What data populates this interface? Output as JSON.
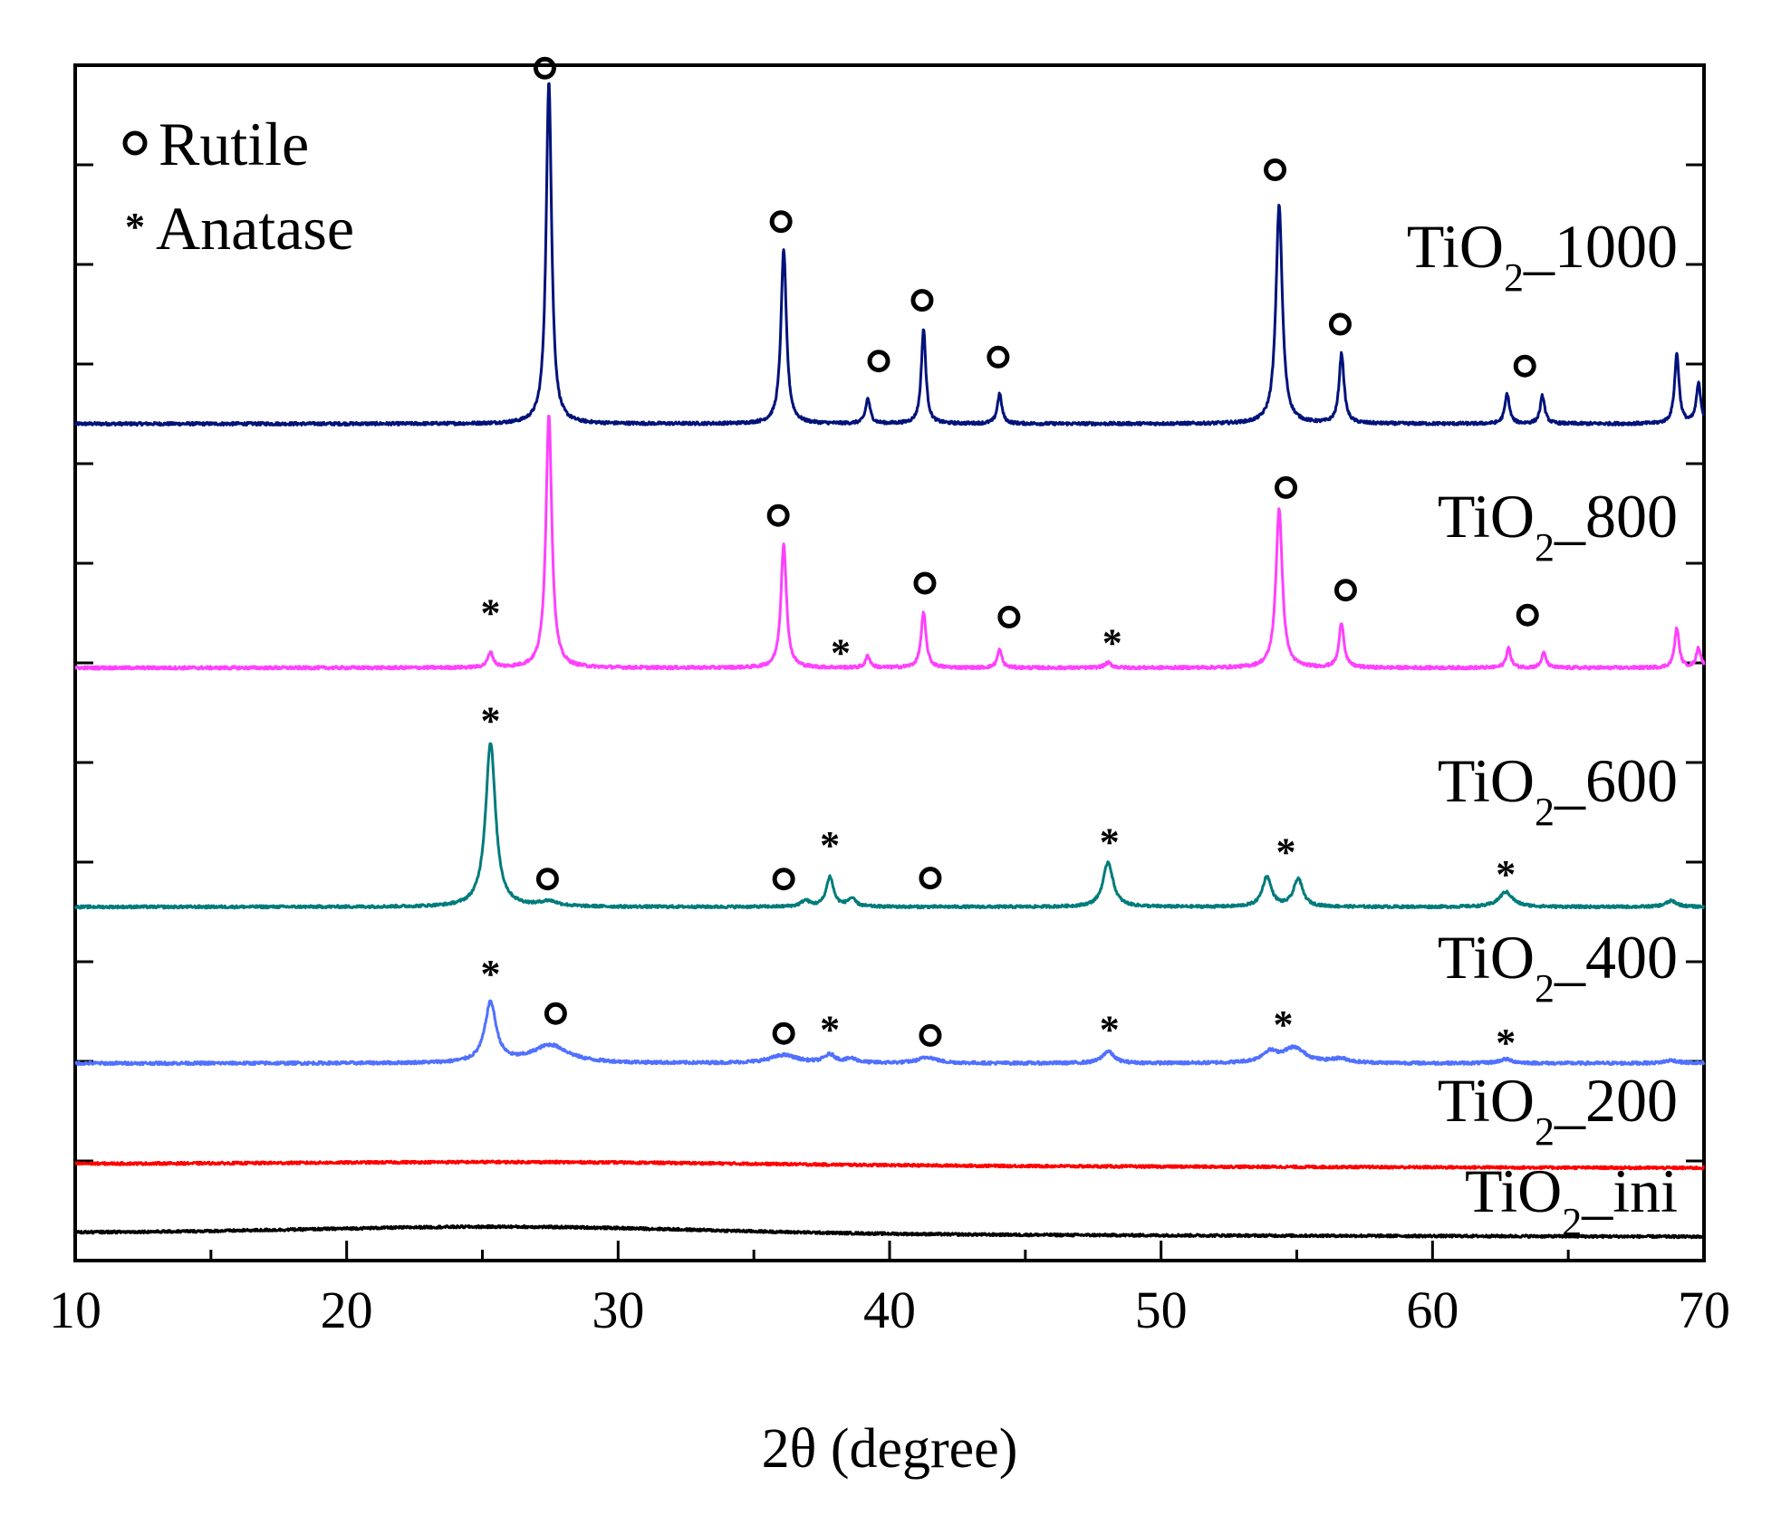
{
  "chart_data": {
    "type": "line",
    "title": "",
    "xlabel": "2θ (degree)",
    "ylabel": "",
    "xlim": [
      10,
      70
    ],
    "ylim": [
      0,
      12
    ],
    "x_ticks": [
      10,
      20,
      30,
      40,
      50,
      60,
      70
    ],
    "y_ticklabels_shown": false,
    "grid": false,
    "legend": {
      "position": "top-left",
      "entries": [
        {
          "symbol": "circle",
          "label": "Rutile"
        },
        {
          "symbol": "star",
          "label": "Anatase"
        }
      ]
    },
    "series": [
      {
        "name": "TiO2_1000",
        "label_main": "TiO",
        "label_sub": "2",
        "label_suffix": "_1000",
        "color": "#00127a",
        "baseline": 8.4,
        "noise": 0.015,
        "peaks": [
          {
            "x": 27.45,
            "h": 3.45,
            "w": 0.12
          },
          {
            "x": 36.1,
            "h": 1.75,
            "w": 0.12
          },
          {
            "x": 39.2,
            "h": 0.25,
            "w": 0.1
          },
          {
            "x": 41.25,
            "h": 0.95,
            "w": 0.1
          },
          {
            "x": 44.05,
            "h": 0.3,
            "w": 0.1
          },
          {
            "x": 54.35,
            "h": 2.2,
            "w": 0.14
          },
          {
            "x": 56.65,
            "h": 0.7,
            "w": 0.11
          },
          {
            "x": 62.75,
            "h": 0.3,
            "w": 0.1
          },
          {
            "x": 64.05,
            "h": 0.28,
            "w": 0.1
          },
          {
            "x": 69.0,
            "h": 0.7,
            "w": 0.1
          },
          {
            "x": 69.8,
            "h": 0.4,
            "w": 0.1
          }
        ],
        "markers": [
          {
            "x": 27.3,
            "y": 11.97,
            "symbol": "circle"
          },
          {
            "x": 36.0,
            "y": 10.43,
            "symbol": "circle"
          },
          {
            "x": 39.6,
            "y": 9.03,
            "symbol": "circle"
          },
          {
            "x": 41.2,
            "y": 9.64,
            "symbol": "circle"
          },
          {
            "x": 44.0,
            "y": 9.07,
            "symbol": "circle"
          },
          {
            "x": 54.2,
            "y": 10.95,
            "symbol": "circle"
          },
          {
            "x": 56.6,
            "y": 9.4,
            "symbol": "circle"
          },
          {
            "x": 63.4,
            "y": 8.98,
            "symbol": "circle"
          }
        ]
      },
      {
        "name": "TiO2_800",
        "label_main": "TiO",
        "label_sub": "2",
        "label_suffix": "_800",
        "color": "#ff40ff",
        "baseline": 5.95,
        "noise": 0.015,
        "peaks": [
          {
            "x": 25.3,
            "h": 0.15,
            "w": 0.12
          },
          {
            "x": 27.45,
            "h": 2.55,
            "w": 0.13
          },
          {
            "x": 36.1,
            "h": 1.25,
            "w": 0.12
          },
          {
            "x": 39.2,
            "h": 0.12,
            "w": 0.1
          },
          {
            "x": 41.25,
            "h": 0.55,
            "w": 0.11
          },
          {
            "x": 44.05,
            "h": 0.18,
            "w": 0.1
          },
          {
            "x": 48.05,
            "h": 0.05,
            "w": 0.15
          },
          {
            "x": 54.35,
            "h": 1.6,
            "w": 0.14
          },
          {
            "x": 56.65,
            "h": 0.45,
            "w": 0.11
          },
          {
            "x": 62.8,
            "h": 0.2,
            "w": 0.1
          },
          {
            "x": 64.1,
            "h": 0.15,
            "w": 0.1
          },
          {
            "x": 69.0,
            "h": 0.4,
            "w": 0.1
          },
          {
            "x": 69.8,
            "h": 0.2,
            "w": 0.1
          }
        ],
        "markers": [
          {
            "x": 25.3,
            "y": 6.53,
            "symbol": "star"
          },
          {
            "x": 35.9,
            "y": 7.48,
            "symbol": "circle"
          },
          {
            "x": 38.2,
            "y": 6.13,
            "symbol": "star"
          },
          {
            "x": 41.3,
            "y": 6.8,
            "symbol": "circle"
          },
          {
            "x": 44.4,
            "y": 6.46,
            "symbol": "circle"
          },
          {
            "x": 48.2,
            "y": 6.23,
            "symbol": "star"
          },
          {
            "x": 54.6,
            "y": 7.76,
            "symbol": "circle"
          },
          {
            "x": 56.8,
            "y": 6.73,
            "symbol": "circle"
          },
          {
            "x": 63.5,
            "y": 6.48,
            "symbol": "circle"
          }
        ]
      },
      {
        "name": "TiO2_600",
        "label_main": "TiO",
        "label_sub": "2",
        "label_suffix": "_600",
        "color": "#007b7b",
        "baseline": 3.55,
        "noise": 0.013,
        "peaks": [
          {
            "x": 25.3,
            "h": 1.65,
            "w": 0.22
          },
          {
            "x": 27.45,
            "h": 0.05,
            "w": 0.4
          },
          {
            "x": 36.9,
            "h": 0.06,
            "w": 0.2
          },
          {
            "x": 37.8,
            "h": 0.3,
            "w": 0.16
          },
          {
            "x": 38.6,
            "h": 0.08,
            "w": 0.18
          },
          {
            "x": 48.05,
            "h": 0.45,
            "w": 0.22
          },
          {
            "x": 53.9,
            "h": 0.3,
            "w": 0.2
          },
          {
            "x": 55.05,
            "h": 0.28,
            "w": 0.2
          },
          {
            "x": 62.7,
            "h": 0.15,
            "w": 0.3
          },
          {
            "x": 68.8,
            "h": 0.06,
            "w": 0.25
          }
        ],
        "markers": [
          {
            "x": 25.3,
            "y": 5.45,
            "symbol": "star"
          },
          {
            "x": 27.4,
            "y": 3.83,
            "symbol": "circle"
          },
          {
            "x": 36.1,
            "y": 3.83,
            "symbol": "circle"
          },
          {
            "x": 37.8,
            "y": 4.2,
            "symbol": "star"
          },
          {
            "x": 41.5,
            "y": 3.84,
            "symbol": "circle"
          },
          {
            "x": 48.1,
            "y": 4.23,
            "symbol": "star"
          },
          {
            "x": 54.6,
            "y": 4.13,
            "symbol": "star"
          },
          {
            "x": 62.7,
            "y": 3.91,
            "symbol": "star"
          }
        ]
      },
      {
        "name": "TiO2_400",
        "label_main": "TiO",
        "label_sub": "2",
        "label_suffix": "_400",
        "color": "#5070ff",
        "baseline": 1.98,
        "noise": 0.015,
        "peaks": [
          {
            "x": 25.3,
            "h": 0.6,
            "w": 0.25
          },
          {
            "x": 27.5,
            "h": 0.18,
            "w": 0.8
          },
          {
            "x": 36.1,
            "h": 0.08,
            "w": 0.6
          },
          {
            "x": 37.8,
            "h": 0.08,
            "w": 0.25
          },
          {
            "x": 38.6,
            "h": 0.04,
            "w": 0.25
          },
          {
            "x": 41.4,
            "h": 0.06,
            "w": 0.4
          },
          {
            "x": 48.05,
            "h": 0.12,
            "w": 0.25
          },
          {
            "x": 54.0,
            "h": 0.1,
            "w": 0.35
          },
          {
            "x": 54.9,
            "h": 0.15,
            "w": 0.5
          },
          {
            "x": 56.6,
            "h": 0.04,
            "w": 0.4
          },
          {
            "x": 62.7,
            "h": 0.04,
            "w": 0.3
          },
          {
            "x": 68.8,
            "h": 0.03,
            "w": 0.3
          }
        ],
        "markers": [
          {
            "x": 25.3,
            "y": 2.91,
            "symbol": "star"
          },
          {
            "x": 27.7,
            "y": 2.48,
            "symbol": "circle"
          },
          {
            "x": 36.1,
            "y": 2.28,
            "symbol": "circle"
          },
          {
            "x": 37.8,
            "y": 2.35,
            "symbol": "star"
          },
          {
            "x": 41.5,
            "y": 2.26,
            "symbol": "circle"
          },
          {
            "x": 48.1,
            "y": 2.35,
            "symbol": "star"
          },
          {
            "x": 54.5,
            "y": 2.4,
            "symbol": "star"
          },
          {
            "x": 62.7,
            "y": 2.22,
            "symbol": "star"
          }
        ]
      },
      {
        "name": "TiO2_200",
        "label_main": "TiO",
        "label_sub": "2",
        "label_suffix": "_200",
        "color": "#ff0000",
        "baseline": 0.97,
        "noise": 0.012,
        "broad": {
          "x": 27.0,
          "h": 0.03,
          "w": 8.0
        },
        "drift": -0.04,
        "peaks": []
      },
      {
        "name": "TiO2_ini",
        "label_main": "TiO",
        "label_sub": "2",
        "label_suffix": "_ini",
        "color": "#000000",
        "baseline": 0.28,
        "noise": 0.012,
        "broad": {
          "x": 26.0,
          "h": 0.07,
          "w": 7.0
        },
        "drift": -0.04,
        "peaks": []
      }
    ]
  }
}
